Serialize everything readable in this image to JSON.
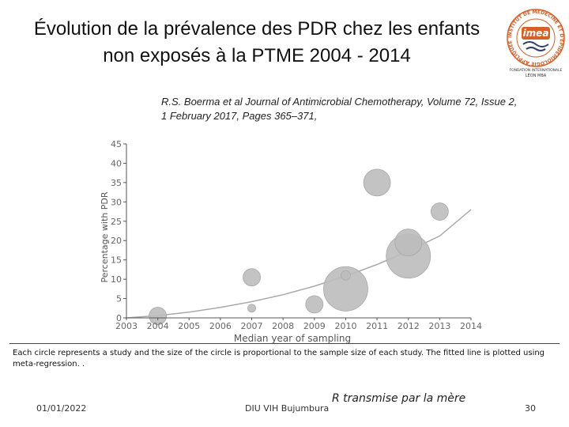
{
  "slide": {
    "title_line1": "Évolution de la prévalence des PDR chez les enfants",
    "title_line2": "non exposés à la PTME 2004 - 2014",
    "reference_line1": "R.S. Boerma et al Journal of Antimicrobial Chemotherapy, Volume 72, Issue 2,",
    "reference_line2": "1 February 2017, Pages 365–371,",
    "caption": "Each circle represents a study and the size of the circle is proportional to the sample size of each study. The fitted line is plotted using meta-regression. .",
    "footer_date": "01/01/2022",
    "footer_center": "DIU VIH Bujumbura",
    "footer_note": "R transmise par la mère",
    "page_number": "30",
    "logo": {
      "name": "imea",
      "ring_text": "INSTITUT DE MÉDECINE ET D'ÉPIDÉMIOLOGIE APPLIQUÉE",
      "sub_line1": "FONDATION INTERNATIONALE",
      "sub_line2": "LÉON MBA",
      "color": "#d4602a"
    }
  },
  "chart_data": {
    "type": "scatter",
    "title": "",
    "xlabel": "Median year of sampling",
    "ylabel": "Percentage with PDR",
    "x_ticks": [
      2003,
      2004,
      2005,
      2006,
      2007,
      2008,
      2009,
      2010,
      2011,
      2012,
      2013,
      2014
    ],
    "y_ticks": [
      0,
      5,
      10,
      15,
      20,
      25,
      30,
      35,
      40,
      45
    ],
    "xlim": [
      2003,
      2014
    ],
    "ylim": [
      0,
      45
    ],
    "points": [
      {
        "x": 2004.0,
        "y": 0.5,
        "size": "medium"
      },
      {
        "x": 2007.0,
        "y": 2.5,
        "size": "tiny"
      },
      {
        "x": 2007.0,
        "y": 10.5,
        "size": "medium"
      },
      {
        "x": 2009.0,
        "y": 3.5,
        "size": "medium"
      },
      {
        "x": 2010.0,
        "y": 7.5,
        "size": "very large"
      },
      {
        "x": 2010.0,
        "y": 11.0,
        "size": "small"
      },
      {
        "x": 2011.0,
        "y": 35.0,
        "size": "large"
      },
      {
        "x": 2012.0,
        "y": 19.5,
        "size": "large"
      },
      {
        "x": 2012.0,
        "y": 16.0,
        "size": "very large"
      },
      {
        "x": 2013.0,
        "y": 27.5,
        "size": "medium"
      }
    ],
    "fit_line": {
      "x": [
        2003,
        2004,
        2005,
        2006,
        2007,
        2008,
        2009,
        2010,
        2011,
        2012,
        2013,
        2014
      ],
      "y": [
        0.0,
        0.6,
        1.5,
        2.7,
        4.2,
        6.0,
        8.2,
        10.8,
        13.8,
        17.3,
        21.2,
        28.0
      ]
    },
    "colors": {
      "bubble": "#bdbdbd",
      "bubble_edge": "#a8a8a8",
      "fit": "#a9a9a9",
      "axis": "#555555",
      "tick": "#666666"
    }
  }
}
